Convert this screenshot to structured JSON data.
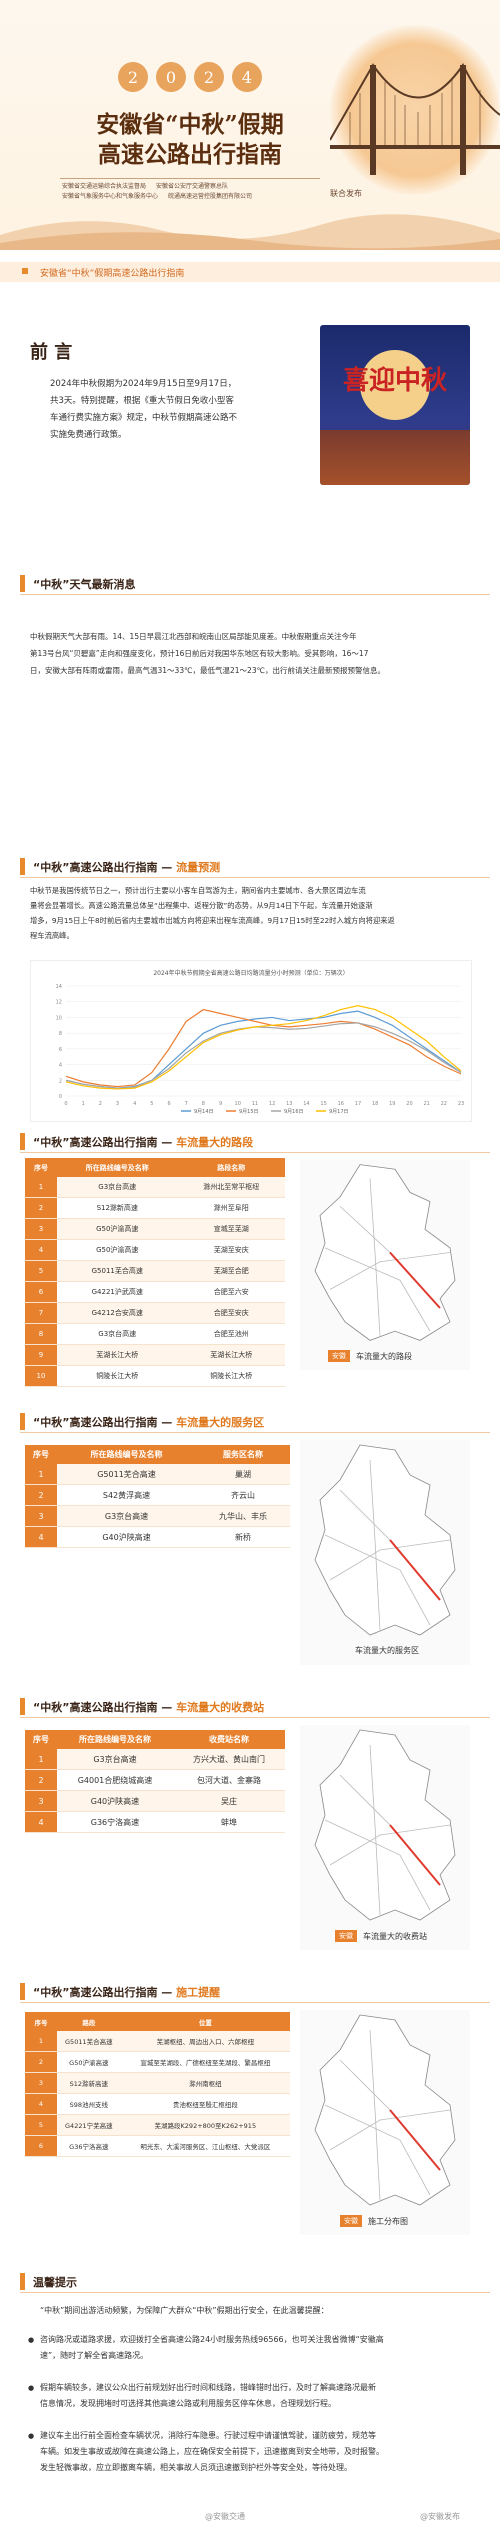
{
  "header": {
    "year_digits": [
      "2",
      "0",
      "2",
      "4"
    ],
    "title_line1": "安徽省“中秋”假期",
    "title_line2": "高速公路出行指南",
    "publishers": [
      "安徽省交通运输综合执法监督局",
      "安徽省公安厅交通警察总队",
      "安徽省气象服务中心和气象服务中心",
      "皖通高速运营控股集团有限公司"
    ],
    "joint": "联合发布"
  },
  "top_bar": {
    "label": "安徽省“中秋”假期高速公路出行指南"
  },
  "preface": {
    "title": "前 言",
    "line1": "2024年中秋假期为2024年9月15日至9月17日，",
    "line2": "共3天。特别提醒，根据《重大节假日免收小型客",
    "line3": "车通行费实施方案》规定，中秋节假期高速公路不",
    "line4": "实施免费通行政策。",
    "poster_text": "喜迎中秋"
  },
  "weather": {
    "heading": "“中秋”天气最新消息",
    "line1": "中秋假期天气大部有雨。14、15日早晨江北西部和皖南山区局部能见度差。中秋假期重点关注今年",
    "line2": "第13号台风“贝碧嘉”走向和强度变化，预计16日前后对我国华东地区有较大影响。受其影响，16～17",
    "line3": "日，安徽大部有阵雨或雷雨，最高气温31～33℃，最低气温21～23℃，出行前请关注最新预报预警信息。"
  },
  "flow": {
    "heading_a": "“中秋”高速公路出行指南 — ",
    "heading_b": "流量预测",
    "line1": "中秋节是我国传统节日之一，预计出行主要以小客车自驾游为主，期间省内主要城市、各大景区周边车流",
    "line2": "量将会显著增长。高速公路流量总体呈“出程集中、返程分散”的态势，从9月14日下午起，车流量开始逐渐",
    "line3": "增多，9月15日上午8时前后省内主要城市出城方向将迎来出程车流高峰，9月17日15时至22时入城方向将迎来返",
    "line4": "程车流高峰。"
  },
  "chart_data": {
    "type": "line",
    "title": "2024年中秋节假期全省高速公路日均路流量分小时预测（单位：万辆次）",
    "x": [
      "0",
      "1",
      "2",
      "3",
      "4",
      "5",
      "6",
      "7",
      "8",
      "9",
      "10",
      "11",
      "12",
      "13",
      "14",
      "15",
      "16",
      "17",
      "18",
      "19",
      "20",
      "21",
      "22",
      "23"
    ],
    "series": [
      {
        "name": "9月14日",
        "color": "#5b9bd5",
        "values": [
          2,
          1.5,
          1.2,
          1,
          1.2,
          2,
          4,
          6,
          8,
          9,
          9.5,
          9.8,
          10,
          9.6,
          9.8,
          10,
          10.5,
          10.8,
          10,
          9,
          7.5,
          6,
          4.5,
          3
        ]
      },
      {
        "name": "9月15日",
        "color": "#ed7d31",
        "values": [
          2.5,
          1.8,
          1.4,
          1.2,
          1.4,
          3,
          6,
          9.5,
          11,
          10.5,
          10,
          9.5,
          9,
          8.8,
          9,
          9.2,
          9.5,
          9.3,
          8.5,
          7.5,
          6.5,
          5,
          3.8,
          2.8
        ]
      },
      {
        "name": "9月16日",
        "color": "#a5a5a5",
        "values": [
          2,
          1.5,
          1.2,
          1,
          1.1,
          2,
          3.5,
          5.5,
          7,
          8,
          8.5,
          8.8,
          8.7,
          8.5,
          8.6,
          8.9,
          9.2,
          9.3,
          8.8,
          8,
          7,
          5.8,
          4.3,
          3
        ]
      },
      {
        "name": "9月17日",
        "color": "#ffc000",
        "values": [
          1.8,
          1.3,
          1,
          0.9,
          1,
          1.8,
          3.2,
          5,
          6.8,
          7.8,
          8.4,
          8.8,
          9,
          9.2,
          9.6,
          10.2,
          11,
          11.5,
          11,
          10,
          8.5,
          7,
          5,
          3.2
        ]
      }
    ],
    "ylim": [
      0,
      14
    ]
  },
  "roads": {
    "heading_a": "“中秋”高速公路出行指南 — ",
    "heading_b": "车流量大的路段",
    "cols": [
      "序号",
      "所在路线编号及名称",
      "路段名称"
    ],
    "rows": [
      [
        "1",
        "G3京台高速",
        "滁州北至常平枢纽"
      ],
      [
        "2",
        "S12滁新高速",
        "滁州至阜阳"
      ],
      [
        "3",
        "G50沪渝高速",
        "宣城至芜湖"
      ],
      [
        "4",
        "G50沪渝高速",
        "芜湖至安庆"
      ],
      [
        "5",
        "G5011芜合高速",
        "芜湖至合肥"
      ],
      [
        "6",
        "G4221沪武高速",
        "合肥至六安"
      ],
      [
        "7",
        "G4212合安高速",
        "合肥至安庆"
      ],
      [
        "8",
        "G3京台高速",
        "合肥至池州"
      ],
      [
        "9",
        "芜湖长江大桥",
        "芜湖长江大桥"
      ],
      [
        "10",
        "铜陵长江大桥",
        "铜陵长江大桥"
      ]
    ],
    "map_tag": "安徽",
    "map_caption": "车流量大的路段"
  },
  "service": {
    "heading_a": "“中秋”高速公路出行指南 — ",
    "heading_b": "车流量大的服务区",
    "cols": [
      "序号",
      "所在路线编号及名称",
      "服务区名称"
    ],
    "rows": [
      [
        "1",
        "G5011芜合高速",
        "巢湖"
      ],
      [
        "2",
        "S42黄浮高速",
        "齐云山"
      ],
      [
        "3",
        "G3京台高速",
        "九华山、丰乐"
      ],
      [
        "4",
        "G40沪陕高速",
        "新桥"
      ]
    ],
    "map_tag": "安徽",
    "map_caption": "车流量大的服务区"
  },
  "toll": {
    "heading_a": "“中秋”高速公路出行指南 — ",
    "heading_b": "车流量大的收费站",
    "cols": [
      "序号",
      "所在路线编号及名称",
      "收费站名称"
    ],
    "rows": [
      [
        "1",
        "G3京台高速",
        "方兴大道、黄山南门"
      ],
      [
        "2",
        "G4001合肥绕城高速",
        "包河大道、金寨路"
      ],
      [
        "3",
        "G40沪陕高速",
        "吴庄"
      ],
      [
        "4",
        "G36宁洛高速",
        "蚌埠"
      ]
    ],
    "map_tag": "安徽",
    "map_caption": "车流量大的收费站"
  },
  "works": {
    "heading_a": "“中秋”高速公路出行指南 — ",
    "heading_b": "施工提醒",
    "cols": [
      "序号",
      "路段",
      "位置"
    ],
    "rows": [
      [
        "1",
        "G5011芜合高速",
        "芜湖枢纽、周边出入口、六郎枢纽"
      ],
      [
        "2",
        "G50沪渝高速",
        "宣城至芜湖段、广德枢纽至芜湖段、繁昌枢纽"
      ],
      [
        "3",
        "S12滁新高速",
        "滁州南枢纽"
      ],
      [
        "4",
        "S98池州支线",
        "贵池枢纽至殷汇枢纽段"
      ],
      [
        "5",
        "G4221宁芜高速",
        "芜湖路段K292+800至K262+915"
      ],
      [
        "6",
        "G36宁洛高速",
        "明光东、大溪河服务区、江山枢纽、大党派区"
      ]
    ],
    "map_tag": "安徽",
    "map_caption": "施工分布图"
  },
  "tips": {
    "heading": "温馨提示",
    "intro": "“中秋”期间出游活动频繁，为保障广大群众“中秋”假期出行安全，在此温馨提醒：",
    "b1_l1": "咨询路况或道路求援，欢迎拨打全省高速公路24小时服务热线96566，也可关注我省微博“安徽高",
    "b1_l2": "速”，随时了解全省高速路况。",
    "b2_l1": "假期车辆较多，建议公众出行前规划好出行时间和线路，错峰错时出行，及时了解高速路况最新",
    "b2_l2": "信息情况，发现拥堵时可选择其他高速公路或利用服务区停车休息，合理规划行程。",
    "b3_l1": "建议车主出行前全面检查车辆状况，消除行车隐患。行驶过程中请谨慎驾驶，谨防疲劳，规范等",
    "b3_l2": "车辆。如发生事故或故障在高速公路上，应在确保安全前提下，迅速撤离到安全地带，及时报警。",
    "b3_l3": "发生轻微事故，应立即撤离车辆，相关事故人员须迅速撤到护栏外等安全处，等待处理。"
  },
  "footer": {
    "left": "@安徽交通",
    "right": "@安徽发布"
  }
}
